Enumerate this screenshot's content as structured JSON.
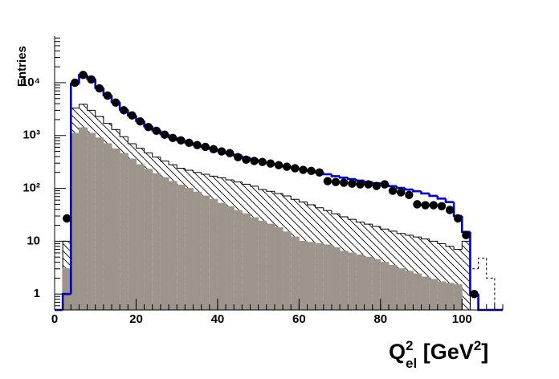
{
  "chart_data": {
    "type": "histogram",
    "ylabel": "Entries",
    "xlabel": [
      {
        "text": "Q"
      },
      {
        "text": "2",
        "shift": "sup"
      },
      {
        "text": "el",
        "shift": "sub"
      },
      {
        "text": " [GeV"
      },
      {
        "text": "2",
        "shift": "sup"
      },
      {
        "text": "]"
      }
    ],
    "bins": [
      0,
      2,
      4,
      6,
      8,
      10,
      12,
      14,
      16,
      18,
      20,
      22,
      24,
      26,
      28,
      30,
      32,
      34,
      36,
      38,
      40,
      42,
      44,
      46,
      48,
      50,
      52,
      54,
      56,
      58,
      60,
      62,
      64,
      66,
      68,
      70,
      72,
      74,
      76,
      78,
      80,
      82,
      84,
      86,
      88,
      90,
      92,
      94,
      96,
      98,
      100,
      102,
      104,
      106,
      108,
      110
    ],
    "xlim": [
      0,
      110
    ],
    "xticks": [
      0,
      20,
      40,
      60,
      80,
      100
    ],
    "ylim": [
      0.5,
      76000
    ],
    "log_y": true,
    "yticks": [
      1,
      10,
      {
        "value": 100,
        "label": "10²"
      },
      {
        "value": 1000,
        "label": "10³"
      },
      {
        "value": 10000,
        "label": "10⁴"
      }
    ],
    "series": [
      {
        "draw": "hatch",
        "color": "#000000",
        "values": [
          0,
          10,
          3300,
          3900,
          3000,
          2300,
          1700,
          1300,
          950,
          700,
          575,
          470,
          390,
          330,
          280,
          240,
          220,
          200,
          185,
          170,
          158,
          145,
          132,
          120,
          110,
          95,
          88,
          80,
          72,
          62,
          55,
          49,
          43,
          38,
          33,
          29,
          26,
          23,
          21,
          19,
          17,
          15.5,
          14,
          13,
          12,
          11,
          10,
          9,
          8,
          7,
          10,
          0,
          0,
          0,
          0
        ]
      },
      {
        "draw": "fill",
        "color": "#9d948b",
        "values": [
          0,
          3,
          1100,
          1400,
          1100,
          900,
          700,
          560,
          460,
          360,
          280,
          230,
          190,
          160,
          135,
          115,
          100,
          85,
          72,
          62,
          52,
          45,
          38,
          33,
          28,
          24,
          21,
          18,
          15,
          12,
          10,
          9.5,
          9,
          8.5,
          7.5,
          6.5,
          6,
          5.5,
          5,
          4.5,
          4,
          3.5,
          3,
          2.7,
          2.4,
          2.1,
          1.9,
          1.7,
          1.6,
          1.5,
          0,
          0,
          0,
          0,
          0
        ]
      },
      {
        "draw": "dash",
        "color": "#000000",
        "values": [
          0,
          0,
          0,
          0,
          0,
          0,
          0,
          0,
          0,
          0,
          0,
          0,
          0,
          0,
          0,
          0,
          0,
          0,
          0,
          0,
          0,
          0,
          0,
          0,
          0,
          0,
          0,
          0,
          0,
          0,
          0,
          0,
          0,
          0,
          0,
          0,
          0,
          0,
          0,
          0,
          0,
          0,
          0,
          0,
          0,
          0,
          0,
          0,
          0,
          0,
          0,
          3,
          4.8,
          2,
          0
        ]
      },
      {
        "draw": "line",
        "color": "#0000cc",
        "values": [
          0,
          1,
          9500,
          14000,
          11800,
          8000,
          5800,
          4300,
          3100,
          2400,
          1900,
          1500,
          1250,
          1060,
          920,
          820,
          740,
          670,
          610,
          560,
          510,
          460,
          420,
          380,
          350,
          320,
          300,
          280,
          260,
          245,
          230,
          215,
          200,
          185,
          170,
          160,
          150,
          140,
          132,
          125,
          118,
          110,
          102,
          95,
          88,
          80,
          72,
          64,
          55,
          30,
          15,
          1,
          0,
          0,
          0
        ]
      },
      {
        "draw": "points",
        "color": "#000000",
        "values": [
          0,
          27,
          10000,
          14000,
          11500,
          7800,
          5700,
          4200,
          3000,
          2400,
          1850,
          1450,
          1230,
          1040,
          900,
          810,
          730,
          660,
          610,
          550,
          500,
          465,
          390,
          350,
          330,
          316,
          295,
          275,
          257,
          240,
          224,
          214,
          200,
          137,
          132,
          128,
          123,
          119,
          119,
          111,
          119,
          90,
          84,
          75,
          50,
          48,
          48,
          46,
          39,
          27,
          13,
          1,
          0,
          0,
          0
        ]
      }
    ]
  }
}
